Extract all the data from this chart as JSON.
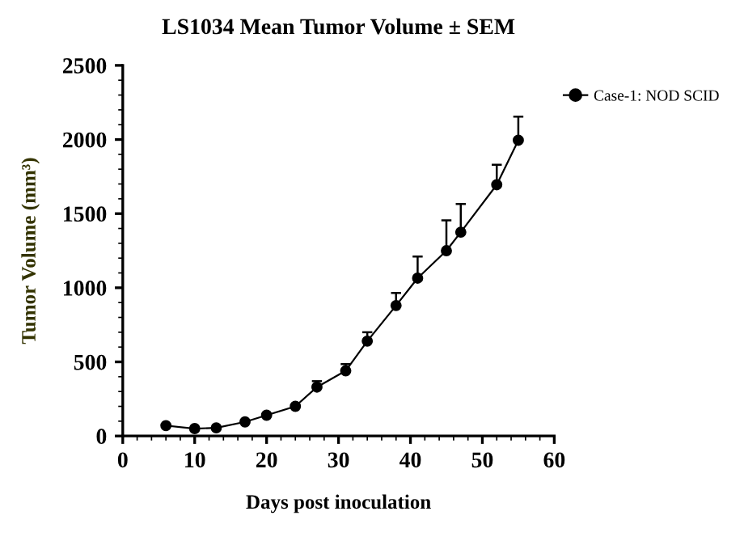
{
  "chart_data": {
    "type": "line",
    "title": "LS1034 Mean Tumor Volume ± SEM",
    "xlabel": "Days post inoculation",
    "ylabel": "Tumor Volume (mm³)",
    "x": [
      6,
      10,
      13,
      17,
      20,
      24,
      27,
      31,
      34,
      38,
      41,
      45,
      47,
      52,
      55
    ],
    "series": [
      {
        "name": "Case-1: NOD SCID",
        "color": "#000000",
        "values": [
          70,
          50,
          55,
          95,
          140,
          200,
          330,
          440,
          640,
          880,
          1065,
          1250,
          1375,
          1695,
          1995
        ],
        "errors": [
          null,
          null,
          null,
          null,
          null,
          null,
          [
            330,
            370
          ],
          [
            440,
            485
          ],
          [
            640,
            700
          ],
          [
            880,
            965
          ],
          [
            1065,
            1210
          ],
          [
            1250,
            1455
          ],
          [
            1375,
            1565
          ],
          [
            1695,
            1830
          ],
          [
            1995,
            2155
          ]
        ]
      }
    ],
    "xlim": [
      0,
      60
    ],
    "xticks": [
      0,
      10,
      20,
      30,
      40,
      50,
      60
    ],
    "ylim": [
      0,
      2500
    ],
    "yticks": [
      0,
      500,
      1000,
      1500,
      2000,
      2500
    ],
    "grid": false,
    "legend": "top right",
    "marker": "circle",
    "line_style": "solid"
  }
}
